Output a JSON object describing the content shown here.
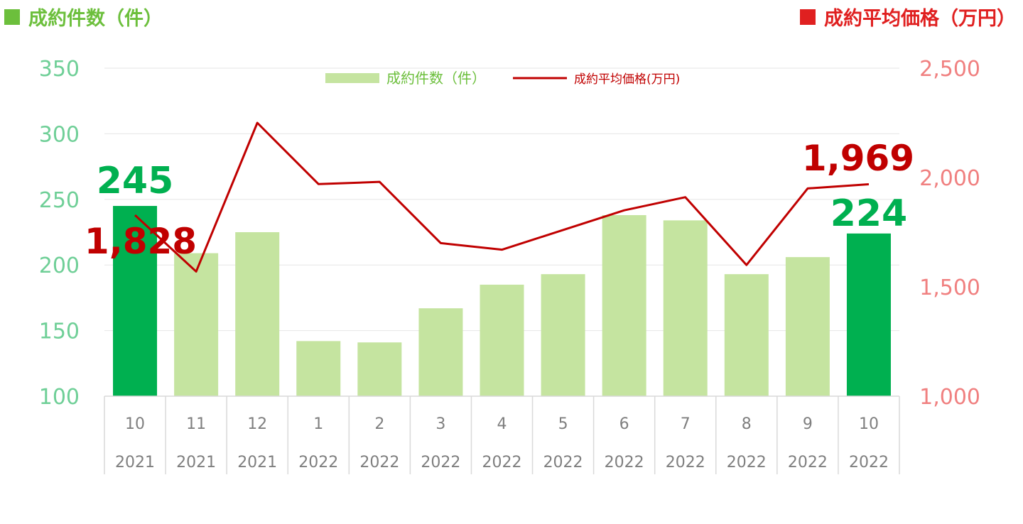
{
  "colors": {
    "bar": "#c5e4a0",
    "bar_highlight": "#00b050",
    "line": "#c00000",
    "left_axis": "#6fcf97",
    "right_axis": "#f08080",
    "left_header": "#6cbf3c",
    "right_header": "#e02020",
    "grid": "#e6e6e6",
    "axis_text": "#7f7f7f"
  },
  "header": {
    "left_label": "成約件数（件）",
    "right_label": "成約平均価格（万円）"
  },
  "chart_data": {
    "type": "bar",
    "categories": [
      "10",
      "11",
      "12",
      "1",
      "2",
      "3",
      "4",
      "5",
      "6",
      "7",
      "8",
      "9",
      "10"
    ],
    "years": [
      "2021",
      "2021",
      "2021",
      "2022",
      "2022",
      "2022",
      "2022",
      "2022",
      "2022",
      "2022",
      "2022",
      "2022",
      "2022"
    ],
    "series": [
      {
        "name": "成約件数（件）",
        "kind": "bar",
        "axis": "left",
        "values": [
          245,
          209,
          225,
          142,
          141,
          167,
          185,
          193,
          238,
          234,
          193,
          206,
          224
        ],
        "highlight": [
          0,
          12
        ]
      },
      {
        "name": "成約平均価格(万円)",
        "kind": "line",
        "axis": "right",
        "values": [
          1828,
          1570,
          2250,
          1970,
          1980,
          1700,
          1670,
          1760,
          1850,
          1910,
          1600,
          1950,
          1969
        ]
      }
    ],
    "left_axis": {
      "min": 100,
      "max": 350,
      "ticks": [
        "100",
        "150",
        "200",
        "250",
        "300",
        "350"
      ]
    },
    "right_axis": {
      "min": 1000,
      "max": 2500,
      "ticks": [
        "1,000",
        "1,500",
        "2,000",
        "2,500"
      ]
    },
    "annotations": {
      "first_count": "245",
      "last_count": "224",
      "first_price": "1,828",
      "last_price": "1,969"
    },
    "legend_position": "top-center",
    "grid": true
  }
}
